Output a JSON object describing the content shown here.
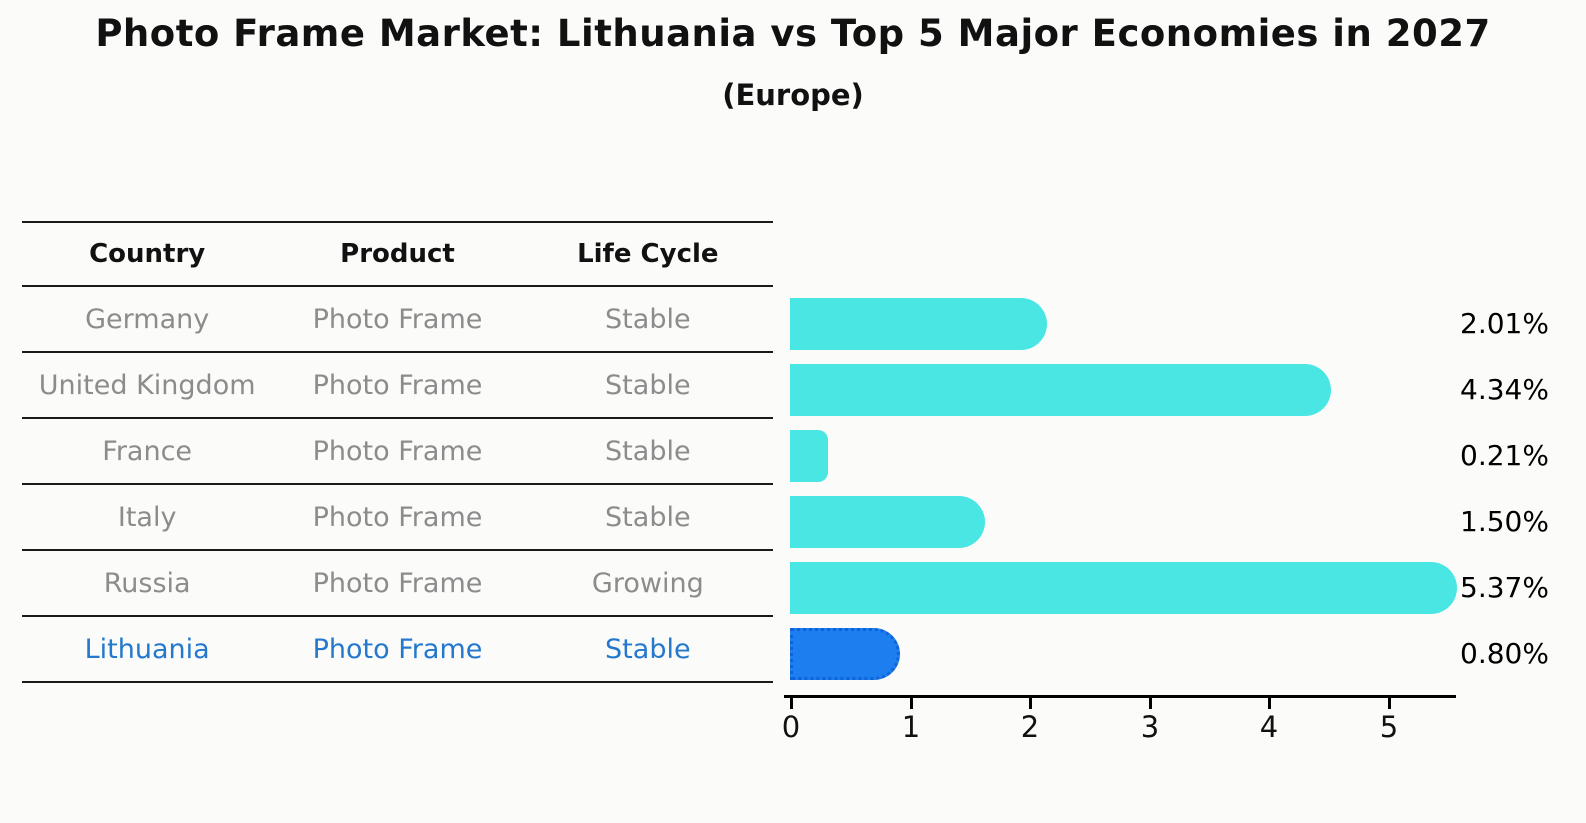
{
  "title": "Photo Frame Market: Lithuania vs Top 5 Major Economies in 2027",
  "subtitle": "(Europe)",
  "table": {
    "headers": [
      "Country",
      "Product",
      "Life Cycle"
    ],
    "rows": [
      {
        "country": "Germany",
        "product": "Photo Frame",
        "life_cycle": "Stable",
        "highlight": false
      },
      {
        "country": "United Kingdom",
        "product": "Photo Frame",
        "life_cycle": "Stable",
        "highlight": false
      },
      {
        "country": "France",
        "product": "Photo Frame",
        "life_cycle": "Stable",
        "highlight": false
      },
      {
        "country": "Italy",
        "product": "Photo Frame",
        "life_cycle": "Stable",
        "highlight": false
      },
      {
        "country": "Russia",
        "product": "Photo Frame",
        "life_cycle": "Growing",
        "highlight": false
      },
      {
        "country": "Lithuania",
        "product": "Photo Frame",
        "life_cycle": "Stable",
        "highlight": true
      }
    ]
  },
  "chart_data": {
    "type": "bar",
    "orientation": "horizontal",
    "title": "Photo Frame Market: Lithuania vs Top 5 Major Economies in 2027",
    "subtitle": "(Europe)",
    "categories": [
      "Germany",
      "United Kingdom",
      "France",
      "Italy",
      "Russia",
      "Lithuania"
    ],
    "values": [
      2.01,
      4.34,
      0.21,
      1.5,
      5.37,
      0.8
    ],
    "value_labels": [
      "2.01%",
      "4.34%",
      "0.21%",
      "1.50%",
      "5.37%",
      "0.80%"
    ],
    "xlabel": "",
    "ylabel": "",
    "xlim": [
      0,
      5.6
    ],
    "xticks": [
      "0",
      "1",
      "2",
      "3",
      "4",
      "5"
    ],
    "grid": false,
    "legend": false,
    "bar_color": "#49e6e3",
    "highlight_bar_color": "#1d7ef0",
    "highlight_bar_border": "#0f63d8",
    "highlight_index": 5
  },
  "colors": {
    "background": "#fbfbfa",
    "text_primary": "#111111",
    "text_muted": "#8c8c8c",
    "highlight_text": "#2478cd",
    "bar": "#49e6e3",
    "highlight_bar": "#1d7ef0",
    "highlight_bar_border": "#0f63d8",
    "axis": "#000000"
  }
}
